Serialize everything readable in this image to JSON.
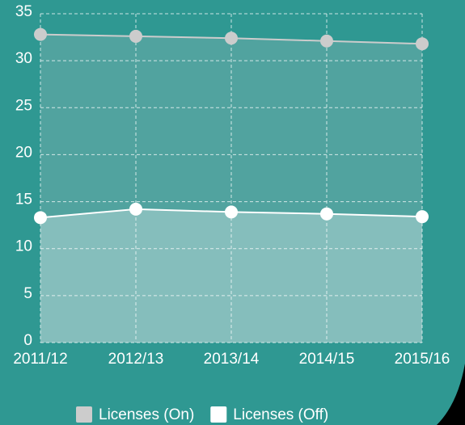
{
  "chart_data": {
    "type": "line",
    "categories": [
      "2011/12",
      "2012/13",
      "2013/14",
      "2014/15",
      "2015/16"
    ],
    "series": [
      {
        "name": "Licenses (On)",
        "color": "#cccccc",
        "values": [
          32.8,
          32.6,
          32.4,
          32.1,
          31.8
        ]
      },
      {
        "name": "Licenses (Off)",
        "color": "#ffffff",
        "values": [
          13.3,
          14.2,
          13.9,
          13.7,
          13.4
        ]
      }
    ],
    "ylim": [
      0,
      35
    ],
    "yticks": [
      0,
      5,
      10,
      15,
      20,
      25,
      30,
      35
    ],
    "grid": true,
    "area": true,
    "legend": "bottom"
  }
}
